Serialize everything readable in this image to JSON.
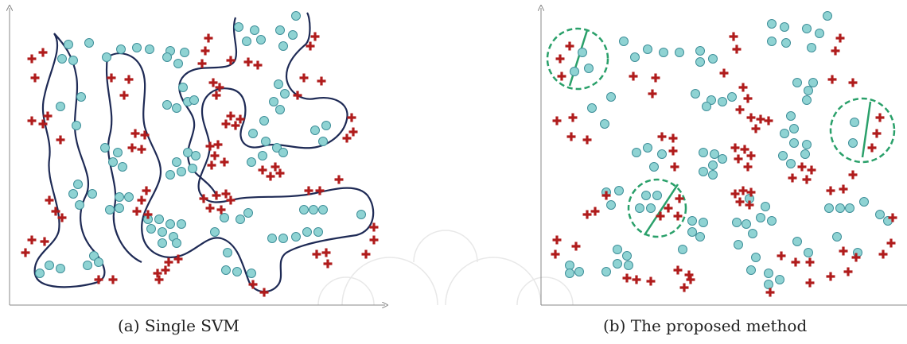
{
  "captions": {
    "a": "(a) Single SVM",
    "b": "(b) The proposed method"
  },
  "colors": {
    "background": "#ffffff",
    "axis": "#888888",
    "circle_fill": "#8fd3d3",
    "circle_stroke": "#3f8f99",
    "plus": "#b01c1c",
    "boundary": "#1e2a55",
    "local_region": "#2aa06a",
    "watermark": "#e8e8e8"
  },
  "icons": {
    "class_a_marker": "circle-marker",
    "class_b_marker": "plus-marker"
  },
  "panels": [
    {
      "id": "single-svm",
      "decision_boundary": "nonlinear",
      "boundary_curves": 2
    },
    {
      "id": "proposed-method",
      "decision_boundary": "local linear",
      "local_regions": 3
    }
  ]
}
